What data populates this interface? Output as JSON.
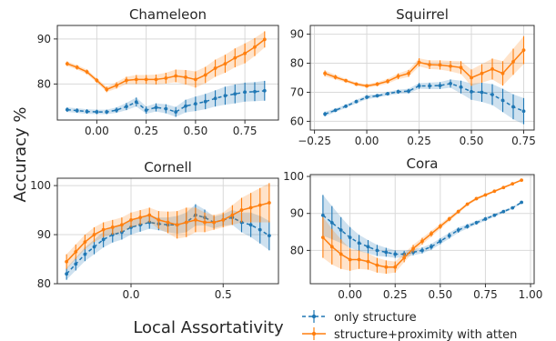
{
  "figure": {
    "ylabel": "Accuracy %",
    "xlabel": "Local Assortativity"
  },
  "legend": {
    "entries": [
      {
        "label": "only structure",
        "color": "#1f77b4",
        "style": "dashed"
      },
      {
        "label": "structure+proximity with atten",
        "color": "#ff7f0e",
        "style": "solid"
      }
    ]
  },
  "colors": {
    "blue": "#1f77b4",
    "orange": "#ff7f0e",
    "grid": "#d9d9d9",
    "axis": "#333333"
  },
  "chart_data": [
    {
      "type": "line",
      "title": "Chameleon",
      "xlim": [
        -0.2,
        0.92
      ],
      "ylim": [
        72,
        93
      ],
      "xticks": [],
      "xtick_labels": [
        "0.00",
        "0.25",
        "0.50",
        "0.75"
      ],
      "xtick_values": [
        0.0,
        0.25,
        0.5,
        0.75
      ],
      "ytick_values": [
        80,
        90
      ],
      "ytick_labels": [
        "80",
        "90"
      ],
      "series": [
        {
          "name": "only structure",
          "x": [
            -0.15,
            -0.1,
            -0.05,
            0.0,
            0.05,
            0.1,
            0.15,
            0.2,
            0.25,
            0.3,
            0.35,
            0.4,
            0.45,
            0.5,
            0.55,
            0.6,
            0.65,
            0.7,
            0.75,
            0.8,
            0.85
          ],
          "y": [
            74.3,
            74.1,
            73.9,
            73.8,
            73.8,
            74.2,
            75.0,
            76.0,
            74.2,
            74.8,
            74.5,
            73.8,
            75.1,
            75.6,
            76.1,
            76.8,
            77.4,
            77.8,
            78.2,
            78.3,
            78.5
          ],
          "err": [
            0.5,
            0.5,
            0.5,
            0.5,
            0.5,
            0.6,
            0.8,
            1.0,
            0.8,
            0.9,
            1.0,
            1.1,
            1.4,
            1.6,
            1.7,
            1.8,
            2.0,
            2.1,
            2.1,
            2.1,
            2.2
          ]
        },
        {
          "name": "structure+proximity with atten",
          "x": [
            -0.15,
            -0.1,
            -0.05,
            0.0,
            0.05,
            0.1,
            0.15,
            0.2,
            0.25,
            0.3,
            0.35,
            0.4,
            0.45,
            0.5,
            0.55,
            0.6,
            0.65,
            0.7,
            0.75,
            0.8,
            0.85
          ],
          "y": [
            84.5,
            83.7,
            82.7,
            80.8,
            78.8,
            79.7,
            80.8,
            81.0,
            81.0,
            81.0,
            81.3,
            81.8,
            81.5,
            81.0,
            82.0,
            83.5,
            84.5,
            85.8,
            86.8,
            88.2,
            89.9
          ],
          "err": [
            0.5,
            0.5,
            0.5,
            0.5,
            0.6,
            0.7,
            0.8,
            1.0,
            1.0,
            1.1,
            1.2,
            1.4,
            1.6,
            1.8,
            1.8,
            1.9,
            2.0,
            2.1,
            2.2,
            2.0,
            1.8
          ]
        }
      ]
    },
    {
      "type": "line",
      "title": "Squirrel",
      "xlim": [
        -0.27,
        0.8
      ],
      "ylim": [
        57,
        93
      ],
      "xtick_values": [
        -0.25,
        0.0,
        0.25,
        0.5,
        0.75
      ],
      "xtick_labels": [
        "−0.25",
        "0.00",
        "0.25",
        "0.50",
        "0.75"
      ],
      "ytick_values": [
        60,
        70,
        80,
        90
      ],
      "ytick_labels": [
        "60",
        "70",
        "80",
        "90"
      ],
      "series": [
        {
          "name": "only structure",
          "x": [
            -0.2,
            -0.15,
            -0.1,
            -0.05,
            0.0,
            0.05,
            0.1,
            0.15,
            0.2,
            0.25,
            0.3,
            0.35,
            0.4,
            0.45,
            0.5,
            0.55,
            0.6,
            0.65,
            0.7,
            0.75
          ],
          "y": [
            62.5,
            63.8,
            65.2,
            66.8,
            68.3,
            68.8,
            69.5,
            70.2,
            70.4,
            72.2,
            72.2,
            72.3,
            73.0,
            71.8,
            70.2,
            70.0,
            69.2,
            67.2,
            65.0,
            63.5
          ],
          "err": [
            0.8,
            0.6,
            0.6,
            0.6,
            0.7,
            0.6,
            0.6,
            0.7,
            0.8,
            1.0,
            1.1,
            1.2,
            1.4,
            2.2,
            2.8,
            3.3,
            3.6,
            4.0,
            4.3,
            4.5
          ]
        },
        {
          "name": "structure+proximity with atten",
          "x": [
            -0.2,
            -0.15,
            -0.1,
            -0.05,
            0.0,
            0.05,
            0.1,
            0.15,
            0.2,
            0.25,
            0.3,
            0.35,
            0.4,
            0.45,
            0.5,
            0.55,
            0.6,
            0.65,
            0.7,
            0.75
          ],
          "y": [
            76.5,
            75.2,
            74.0,
            72.8,
            72.2,
            72.8,
            73.8,
            75.5,
            76.5,
            80.3,
            79.5,
            79.4,
            79.0,
            78.5,
            75.0,
            76.5,
            78.0,
            76.5,
            80.5,
            84.5
          ],
          "err": [
            1.0,
            0.8,
            0.6,
            0.6,
            0.6,
            0.7,
            0.8,
            1.0,
            1.2,
            1.4,
            1.5,
            1.6,
            1.8,
            2.2,
            2.8,
            3.2,
            3.6,
            4.2,
            4.5,
            4.8
          ]
        }
      ]
    },
    {
      "type": "line",
      "title": "Cornell",
      "xlim": [
        -0.4,
        0.8
      ],
      "ylim": [
        80,
        101.5
      ],
      "xtick_values": [
        0.0,
        0.5
      ],
      "xtick_labels": [
        "0.0",
        "0.5"
      ],
      "ytick_values": [
        80,
        90,
        100
      ],
      "ytick_labels": [
        "80",
        "90",
        "100"
      ],
      "series": [
        {
          "name": "only structure",
          "x": [
            -0.35,
            -0.3,
            -0.25,
            -0.2,
            -0.15,
            -0.1,
            -0.05,
            0.0,
            0.05,
            0.1,
            0.15,
            0.2,
            0.25,
            0.3,
            0.35,
            0.4,
            0.45,
            0.5,
            0.55,
            0.6,
            0.65,
            0.7,
            0.75
          ],
          "y": [
            82.0,
            84.0,
            86.0,
            87.5,
            89.0,
            90.0,
            90.5,
            91.5,
            92.0,
            92.5,
            92.2,
            92.0,
            92.0,
            92.5,
            94.0,
            93.5,
            92.5,
            93.0,
            93.5,
            92.5,
            92.0,
            91.0,
            89.8
          ],
          "err": [
            1.2,
            1.3,
            1.4,
            1.5,
            1.6,
            1.6,
            1.5,
            1.5,
            1.4,
            1.3,
            1.3,
            1.5,
            1.8,
            2.0,
            2.2,
            1.6,
            1.2,
            1.2,
            1.5,
            2.0,
            2.5,
            2.8,
            3.0
          ]
        },
        {
          "name": "structure+proximity with atten",
          "x": [
            -0.35,
            -0.3,
            -0.25,
            -0.2,
            -0.15,
            -0.1,
            -0.05,
            0.0,
            0.05,
            0.1,
            0.15,
            0.2,
            0.25,
            0.3,
            0.35,
            0.4,
            0.45,
            0.5,
            0.55,
            0.6,
            0.65,
            0.7,
            0.75
          ],
          "y": [
            84.5,
            86.5,
            88.5,
            90.0,
            91.0,
            91.5,
            92.0,
            93.0,
            93.5,
            94.0,
            93.0,
            92.5,
            92.0,
            92.5,
            93.0,
            92.5,
            92.5,
            93.0,
            94.0,
            95.0,
            95.5,
            96.0,
            96.5
          ],
          "err": [
            1.5,
            1.5,
            1.5,
            1.5,
            1.5,
            1.5,
            1.5,
            1.5,
            1.5,
            1.5,
            1.8,
            2.2,
            2.8,
            3.0,
            2.5,
            2.0,
            1.5,
            1.5,
            2.0,
            2.5,
            3.0,
            3.5,
            4.0
          ]
        }
      ]
    },
    {
      "type": "line",
      "title": "Cora",
      "xlim": [
        -0.22,
        1.02
      ],
      "ylim": [
        71,
        100.5
      ],
      "xtick_values": [
        0.0,
        0.25,
        0.5,
        0.75,
        1.0
      ],
      "xtick_labels": [
        "0.00",
        "0.25",
        "0.50",
        "0.75",
        "1.00"
      ],
      "ytick_values": [
        80,
        90,
        100
      ],
      "ytick_labels": [
        "80",
        "90",
        "100"
      ],
      "series": [
        {
          "name": "only structure",
          "x": [
            -0.15,
            -0.1,
            -0.05,
            0.0,
            0.05,
            0.1,
            0.15,
            0.2,
            0.25,
            0.3,
            0.35,
            0.4,
            0.45,
            0.5,
            0.55,
            0.6,
            0.65,
            0.7,
            0.75,
            0.8,
            0.85,
            0.9,
            0.95
          ],
          "y": [
            89.5,
            87.5,
            85.5,
            83.5,
            82.0,
            81.0,
            80.0,
            79.5,
            79.0,
            79.0,
            79.5,
            80.0,
            81.0,
            82.5,
            84.0,
            85.5,
            86.5,
            87.5,
            88.5,
            89.5,
            90.5,
            91.5,
            93.0
          ],
          "err": [
            5.5,
            4.5,
            3.5,
            2.8,
            2.2,
            1.8,
            1.5,
            1.2,
            1.0,
            0.9,
            0.8,
            0.8,
            0.8,
            0.8,
            0.8,
            0.7,
            0.6,
            0.5,
            0.5,
            0.4,
            0.4,
            0.3,
            0.3
          ]
        },
        {
          "name": "structure+proximity with atten",
          "x": [
            -0.15,
            -0.1,
            -0.05,
            0.0,
            0.05,
            0.1,
            0.15,
            0.2,
            0.25,
            0.3,
            0.35,
            0.4,
            0.45,
            0.5,
            0.55,
            0.6,
            0.65,
            0.7,
            0.75,
            0.8,
            0.85,
            0.9,
            0.95
          ],
          "y": [
            83.5,
            81.0,
            79.0,
            77.5,
            77.5,
            77.0,
            76.0,
            75.5,
            75.5,
            78.0,
            80.5,
            82.5,
            84.5,
            86.5,
            88.5,
            90.5,
            92.5,
            94.0,
            95.0,
            96.0,
            97.0,
            98.0,
            99.0
          ],
          "err": [
            5.5,
            4.8,
            4.0,
            3.0,
            2.5,
            2.2,
            2.0,
            1.8,
            1.5,
            1.2,
            1.0,
            0.9,
            0.8,
            0.7,
            0.6,
            0.5,
            0.4,
            0.4,
            0.3,
            0.3,
            0.3,
            0.2,
            0.2
          ]
        }
      ]
    }
  ]
}
